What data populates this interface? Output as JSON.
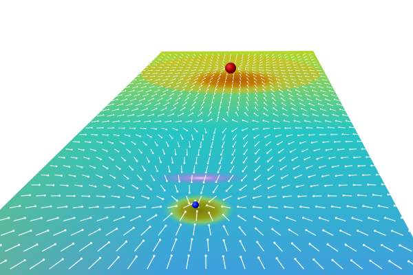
{
  "scene": {
    "background": "#ffffff",
    "surface_colors": {
      "far": "#b4d62a",
      "mid": "#26c6c2",
      "near": "#3f9fdc",
      "arrow": "#ffffff"
    },
    "charges": [
      {
        "name": "positive",
        "color": "#a00000",
        "well_color": "#b86400"
      },
      {
        "name": "negative",
        "color": "#0a14d8",
        "well_color": "#8c8c10"
      }
    ]
  }
}
